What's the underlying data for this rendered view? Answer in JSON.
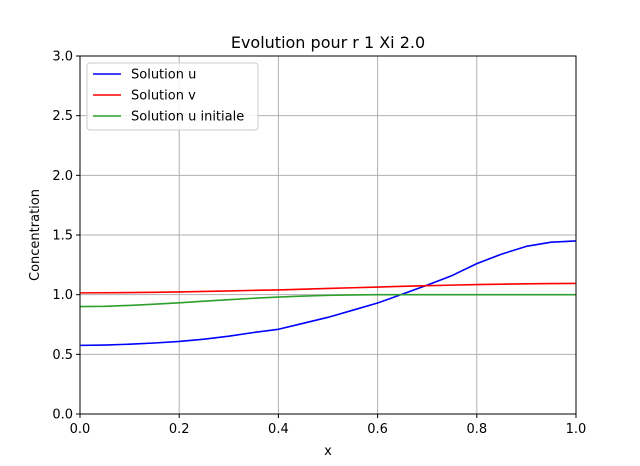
{
  "chart_data": {
    "type": "line",
    "title": "Evolution pour r 1 Xi 2.0",
    "xlabel": "x",
    "ylabel": "Concentration",
    "xlim": [
      0.0,
      1.0
    ],
    "ylim": [
      0.0,
      3.0
    ],
    "x_ticks": [
      "0.0",
      "0.2",
      "0.4",
      "0.6",
      "0.8",
      "1.0"
    ],
    "y_ticks": [
      "0.0",
      "0.5",
      "1.0",
      "1.5",
      "2.0",
      "2.5",
      "3.0"
    ],
    "grid": true,
    "legend_position": "top-left",
    "x": [
      0.0,
      0.05,
      0.1,
      0.15,
      0.2,
      0.25,
      0.3,
      0.35,
      0.4,
      0.45,
      0.5,
      0.55,
      0.6,
      0.65,
      0.7,
      0.75,
      0.8,
      0.85,
      0.9,
      0.95,
      1.0
    ],
    "series": [
      {
        "name": "Solution u",
        "color": "#0000ff",
        "values": [
          0.575,
          0.578,
          0.585,
          0.595,
          0.608,
          0.627,
          0.652,
          0.683,
          0.71,
          0.76,
          0.81,
          0.87,
          0.93,
          1.005,
          1.08,
          1.16,
          1.26,
          1.34,
          1.405,
          1.44,
          1.45
        ]
      },
      {
        "name": "Solution v",
        "color": "#ff0000",
        "values": [
          1.015,
          1.016,
          1.018,
          1.02,
          1.023,
          1.027,
          1.031,
          1.036,
          1.04,
          1.046,
          1.052,
          1.058,
          1.064,
          1.07,
          1.075,
          1.08,
          1.085,
          1.088,
          1.091,
          1.093,
          1.094
        ]
      },
      {
        "name": "Solution u initiale",
        "color": "#2ca02c",
        "values": [
          0.9,
          0.902,
          0.91,
          0.92,
          0.932,
          0.945,
          0.958,
          0.97,
          0.98,
          0.988,
          0.994,
          0.998,
          1.0,
          1.0,
          1.0,
          1.0,
          1.0,
          1.0,
          1.0,
          1.0,
          1.0
        ]
      }
    ]
  }
}
